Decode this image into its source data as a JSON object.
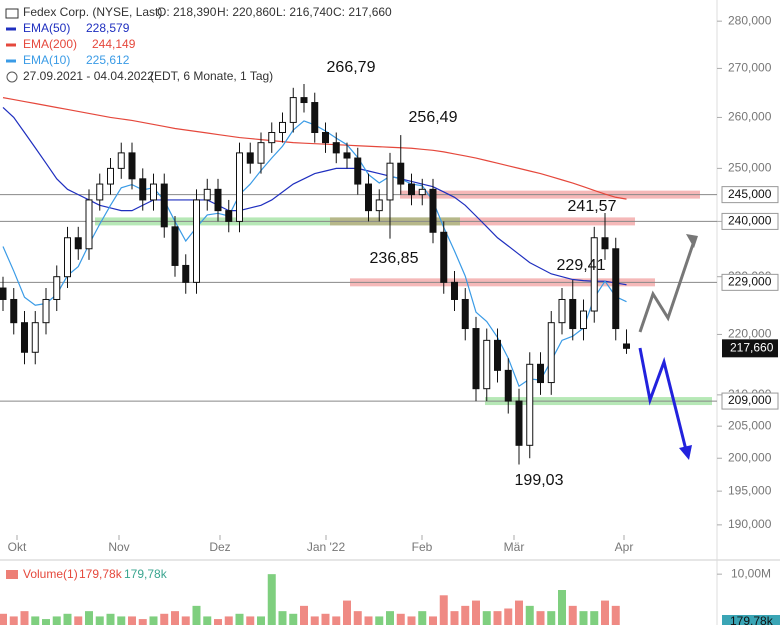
{
  "chart_data": {
    "type": "candlestick",
    "title": "Fedex Corp. (NYSE, Last)",
    "ohlc_labels": [
      "O: 218,390",
      "H: 220,860",
      "L: 216,740",
      "C: 217,660"
    ],
    "date_range": "27.09.2021 - 04.04.2022",
    "info": "(EDT, 6 Monate, 1 Tag)",
    "log_scale": true,
    "ylim": [
      187.8,
      284.6
    ],
    "yticks": [
      {
        "value": 280,
        "label": "280,000"
      },
      {
        "value": 270,
        "label": "270,000"
      },
      {
        "value": 260,
        "label": "260,000"
      },
      {
        "value": 250,
        "label": "250,000"
      },
      {
        "value": 240,
        "label": "240,000"
      },
      {
        "value": 230,
        "label": "230,000"
      },
      {
        "value": 220,
        "label": "220,000"
      },
      {
        "value": 210,
        "label": "210,000"
      },
      {
        "value": 205,
        "label": "205,000"
      },
      {
        "value": 200,
        "label": "200,000"
      },
      {
        "value": 195,
        "label": "195,000"
      },
      {
        "value": 190,
        "label": "190,000"
      }
    ],
    "x_labels": [
      "Okt",
      "Nov",
      "Dez",
      "Jan '22",
      "Feb",
      "Mär",
      "Apr"
    ],
    "open": [
      228,
      226,
      222,
      217,
      222,
      226,
      230,
      237,
      235,
      244,
      247,
      250,
      253,
      248,
      244,
      247,
      239,
      232,
      229,
      244,
      246,
      242,
      240,
      253,
      251,
      255,
      257,
      259,
      264,
      263,
      257,
      255,
      253,
      252,
      247,
      242,
      244,
      251,
      247,
      245,
      246,
      238,
      229,
      226,
      221,
      211,
      219,
      214,
      209,
      202,
      215,
      212,
      222,
      226,
      221,
      224,
      237,
      235,
      218.39
    ],
    "high": [
      230,
      228,
      224,
      224,
      228,
      232,
      239,
      239,
      246,
      249,
      252,
      255,
      255,
      250,
      249,
      249,
      241,
      234,
      246,
      248,
      248,
      244,
      255,
      255,
      257,
      259,
      261,
      266,
      266.79,
      265,
      259,
      257,
      255,
      254,
      249,
      246,
      253,
      256.49,
      249,
      248,
      248,
      240,
      231,
      228,
      223,
      221,
      221,
      216,
      211,
      217,
      217,
      224,
      228,
      229.41,
      226,
      239,
      241.57,
      237,
      220.86
    ],
    "low": [
      224,
      220,
      215,
      215,
      220,
      224,
      228,
      233,
      233,
      242,
      245,
      248,
      246,
      242,
      242,
      237,
      230,
      227,
      227,
      242,
      240,
      238,
      238,
      249,
      249,
      253,
      255,
      257,
      261,
      255,
      253,
      251,
      250,
      245,
      240,
      240,
      236.85,
      245,
      243,
      243,
      236,
      227,
      224,
      219,
      209,
      209,
      212,
      207,
      199.03,
      200,
      210,
      210,
      220,
      219,
      219,
      222,
      233,
      219,
      216.74
    ],
    "close": [
      226,
      222,
      217,
      222,
      226,
      230,
      237,
      235,
      244,
      247,
      250,
      253,
      248,
      244,
      247,
      239,
      232,
      229,
      244,
      246,
      242,
      240,
      253,
      251,
      255,
      257,
      259,
      264,
      263,
      257,
      255,
      253,
      252,
      247,
      242,
      244,
      251,
      247,
      245,
      246,
      238,
      229,
      226,
      221,
      211,
      219,
      214,
      209,
      202,
      215,
      212,
      222,
      226,
      221,
      224,
      237,
      235,
      221,
      217.66
    ],
    "series": [
      {
        "name": "EMA(50)",
        "value_label": "228,579",
        "color": "#1f2fbf",
        "values": [
          262,
          260,
          257,
          254,
          251,
          248,
          246,
          245,
          244,
          243,
          242.5,
          242,
          242,
          243,
          244,
          244,
          244,
          244,
          244,
          244,
          243,
          242,
          242,
          242.5,
          243,
          244,
          245.5,
          247,
          248,
          249,
          249.5,
          250,
          250,
          250,
          249.5,
          249,
          248.5,
          248,
          247.5,
          247,
          246.5,
          245.5,
          244.5,
          243,
          241,
          239,
          237,
          235.5,
          234,
          232.5,
          231.5,
          230.5,
          230,
          229.5,
          229.3,
          229.2,
          229.2,
          228.9,
          228.579
        ]
      },
      {
        "name": "EMA(200)",
        "value_label": "244,149",
        "color": "#e5483c",
        "values": [
          264,
          263.6,
          263.2,
          262.8,
          262.4,
          262,
          261.6,
          261.2,
          260.8,
          260.4,
          260,
          259.7,
          259.4,
          259,
          258.6,
          258.2,
          257.8,
          257.5,
          257.2,
          256.9,
          256.6,
          256.3,
          256,
          255.8,
          255.6,
          255.4,
          255.2,
          255,
          254.9,
          254.8,
          254.7,
          254.6,
          254.5,
          254.4,
          254.3,
          254.2,
          254.1,
          254,
          253.9,
          253.7,
          253.5,
          253.2,
          252.8,
          252.4,
          252,
          251.5,
          251,
          250.5,
          250,
          249.5,
          249,
          248.4,
          247.8,
          247.2,
          246.5,
          245.8,
          245.1,
          244.5,
          244.149
        ]
      },
      {
        "name": "EMA(10)",
        "value_label": "225,612",
        "color": "#3a9be6",
        "values": [
          235.4,
          231,
          226.4,
          225,
          225.3,
          226.9,
          230.2,
          231.8,
          235.8,
          239.5,
          243,
          246.3,
          246.9,
          245.9,
          246.3,
          243.9,
          240,
          236.4,
          238.9,
          241.2,
          241.5,
          241,
          245,
          247,
          249.6,
          252,
          254.3,
          257.5,
          259.3,
          258.5,
          257.3,
          255.9,
          254.6,
          252.1,
          248.8,
          247.2,
          248.5,
          248,
          247,
          246.7,
          243.8,
          238.9,
          234.6,
          230.1,
          223.8,
          222.2,
          219.5,
          216,
          211.4,
          212.6,
          212.4,
          215.6,
          219,
          219.7,
          221.1,
          226.3,
          229.2,
          226.5,
          225.612
        ]
      }
    ],
    "levels": [
      {
        "value": 245,
        "label": "245,000"
      },
      {
        "value": 240,
        "label": "240,000"
      },
      {
        "value": 229,
        "label": "229,000"
      },
      {
        "value": 209,
        "label": "209,000"
      }
    ],
    "last_price": {
      "value": 217.66,
      "label": "217,660"
    },
    "annotations": [
      "266,79",
      "256,49",
      "241,57",
      "236,85",
      "229,41",
      "199,03"
    ],
    "volume": {
      "name": "Volume(1)",
      "last_label": "179,78k",
      "ylim": [
        0,
        12.3
      ],
      "yticks": [
        {
          "value": 10,
          "label": "10,00M"
        }
      ],
      "values": [
        2.5,
        2,
        3,
        2,
        1.5,
        2,
        2.5,
        2,
        3,
        2,
        2.5,
        2,
        2,
        1.5,
        2,
        2.5,
        3,
        2,
        4,
        2,
        1.5,
        2,
        2.5,
        2,
        2,
        10,
        3,
        2.5,
        4,
        2,
        2.5,
        2,
        5,
        3,
        2,
        2,
        3,
        2.5,
        2,
        3,
        2,
        6,
        3,
        4,
        5,
        3,
        3,
        3.5,
        5,
        4,
        3,
        3,
        7,
        4,
        3,
        3,
        5,
        4,
        0.18
      ]
    }
  }
}
